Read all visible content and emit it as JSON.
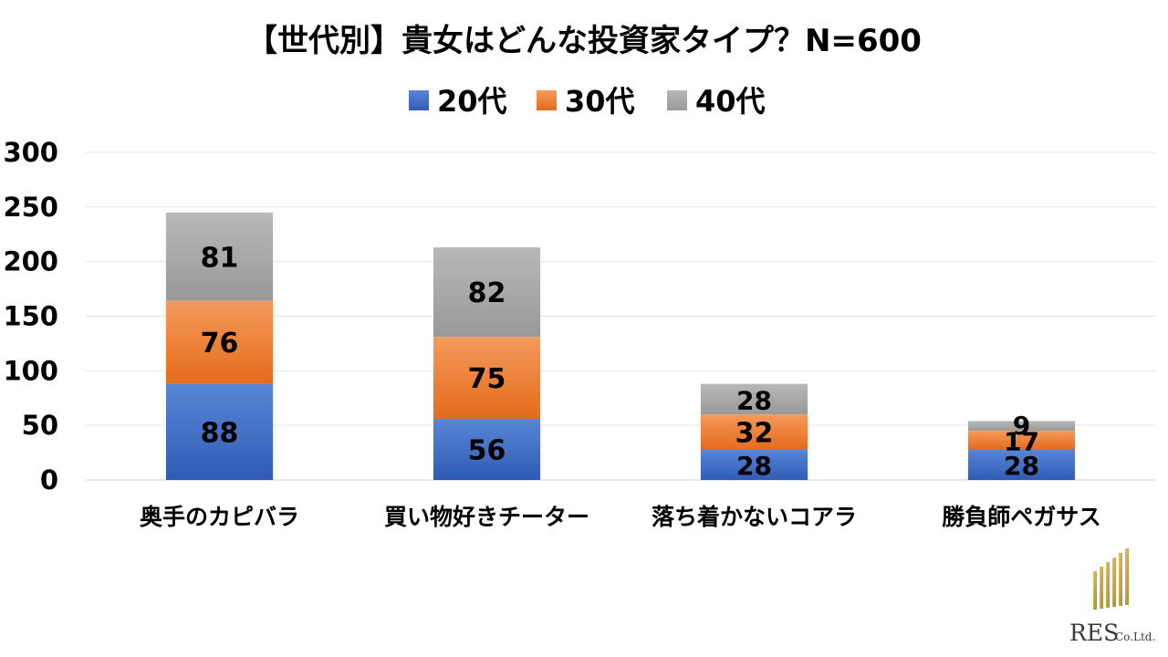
{
  "chart_data": {
    "type": "bar",
    "stacked": true,
    "title": "【世代別】貴女はどんな投資家タイプ？N=600",
    "categories": [
      "奥手のカピバラ",
      "買い物好きチーター",
      "落ち着かないコアラ",
      "勝負師ペガサス"
    ],
    "series": [
      {
        "name": "20代",
        "values": [
          88,
          56,
          28,
          28
        ],
        "color": "#4472c4"
      },
      {
        "name": "30代",
        "values": [
          76,
          75,
          32,
          17
        ],
        "color": "#ed7d31"
      },
      {
        "name": "40代",
        "values": [
          81,
          82,
          28,
          9
        ],
        "color": "#a5a5a5"
      }
    ],
    "ylim": [
      0,
      300
    ],
    "yticks": [
      0,
      50,
      100,
      150,
      200,
      250,
      300
    ],
    "grid": true,
    "legend": "top",
    "data_labels": true
  },
  "logo": {
    "main": "RES",
    "sub": "Co.Ltd.",
    "color": "#c8a54a"
  }
}
